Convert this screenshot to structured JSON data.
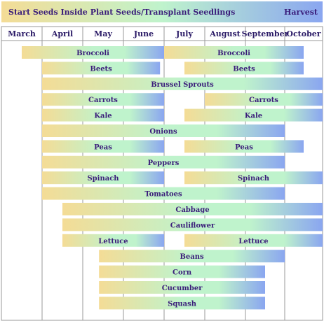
{
  "legend": {
    "start": "Start Seeds Inside",
    "plant": "Plant Seeds/Transplant Seedlings",
    "harvest": "Harvest"
  },
  "colors": {
    "start": "#f4dc96",
    "plant": "#bff3cc",
    "harvest": "#8aa6f0",
    "text": "#3a1d7a",
    "grid": "#9a9a9a"
  },
  "chart_data": {
    "type": "gantt",
    "months": [
      "March",
      "April",
      "May",
      "June",
      "July",
      "August",
      "September",
      "October"
    ],
    "crops": [
      {
        "name": "Broccoli",
        "periods": [
          {
            "start": 0.5,
            "end": 4.0
          },
          {
            "start": 4.0,
            "end": 7.5
          }
        ]
      },
      {
        "name": "Beets",
        "periods": [
          {
            "start": 1.0,
            "end": 3.9
          },
          {
            "start": 4.5,
            "end": 7.5
          }
        ]
      },
      {
        "name": "Brussel Sprouts",
        "periods": [
          {
            "start": 1.0,
            "end": 8.0
          }
        ]
      },
      {
        "name": "Carrots",
        "periods": [
          {
            "start": 1.0,
            "end": 4.0
          },
          {
            "start": 5.0,
            "end": 8.0
          }
        ]
      },
      {
        "name": "Kale",
        "periods": [
          {
            "start": 1.0,
            "end": 4.0
          },
          {
            "start": 4.5,
            "end": 8.0
          }
        ]
      },
      {
        "name": "Onions",
        "periods": [
          {
            "start": 1.0,
            "end": 7.0
          }
        ]
      },
      {
        "name": "Peas",
        "periods": [
          {
            "start": 1.0,
            "end": 4.0
          },
          {
            "start": 4.5,
            "end": 7.5
          }
        ]
      },
      {
        "name": "Peppers",
        "periods": [
          {
            "start": 1.0,
            "end": 7.0
          }
        ]
      },
      {
        "name": "Spinach",
        "periods": [
          {
            "start": 1.0,
            "end": 4.0
          },
          {
            "start": 4.5,
            "end": 8.0
          }
        ]
      },
      {
        "name": "Tomatoes",
        "periods": [
          {
            "start": 1.0,
            "end": 7.0
          }
        ]
      },
      {
        "name": "Cabbage",
        "periods": [
          {
            "start": 1.5,
            "end": 8.0
          }
        ]
      },
      {
        "name": "Cauliflower",
        "periods": [
          {
            "start": 1.5,
            "end": 8.0
          }
        ]
      },
      {
        "name": "Lettuce",
        "periods": [
          {
            "start": 1.5,
            "end": 4.0
          },
          {
            "start": 4.5,
            "end": 8.0
          }
        ]
      },
      {
        "name": "Beans",
        "periods": [
          {
            "start": 2.4,
            "end": 7.0
          }
        ]
      },
      {
        "name": "Corn",
        "periods": [
          {
            "start": 2.4,
            "end": 6.5
          }
        ]
      },
      {
        "name": "Cucumber",
        "periods": [
          {
            "start": 2.4,
            "end": 6.5
          }
        ]
      },
      {
        "name": "Squash",
        "periods": [
          {
            "start": 2.4,
            "end": 6.5
          }
        ]
      }
    ]
  }
}
